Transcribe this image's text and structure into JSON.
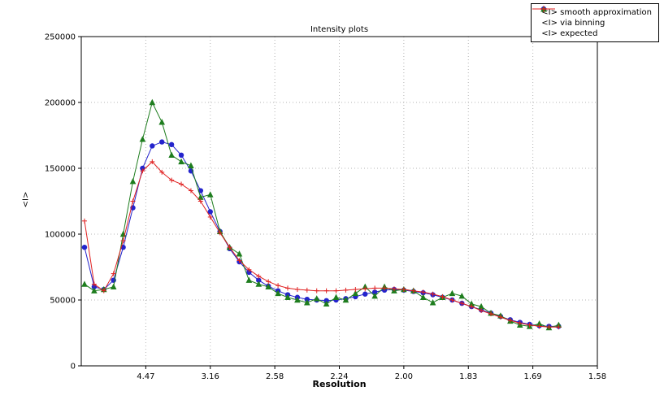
{
  "chart_data": {
    "type": "line",
    "title": "Intensity plots",
    "xlabel": "Resolution",
    "ylabel": "<I>",
    "xlim": [
      0,
      0.4
    ],
    "ylim": [
      0,
      250000
    ],
    "grid": true,
    "grid_color": "#b5b5b5",
    "legend_position": "upper right",
    "xticks": {
      "values": [
        0.05,
        0.1,
        0.15,
        0.2,
        0.25,
        0.3,
        0.35,
        0.4
      ],
      "labels": [
        "4.47",
        "3.16",
        "2.58",
        "2.24",
        "2.00",
        "1.83",
        "1.69",
        "1.58"
      ]
    },
    "yticks": {
      "values": [
        0,
        50000,
        100000,
        150000,
        200000,
        250000
      ],
      "labels": [
        "0",
        "50000",
        "100000",
        "150000",
        "200000",
        "250000"
      ]
    },
    "x": [
      0.0025,
      0.01,
      0.0175,
      0.025,
      0.0325,
      0.04,
      0.0475,
      0.055,
      0.0625,
      0.07,
      0.0775,
      0.085,
      0.0925,
      0.1,
      0.1075,
      0.115,
      0.1225,
      0.13,
      0.1375,
      0.145,
      0.1525,
      0.16,
      0.1675,
      0.175,
      0.1825,
      0.19,
      0.1975,
      0.205,
      0.2125,
      0.22,
      0.2275,
      0.235,
      0.2425,
      0.25,
      0.2575,
      0.265,
      0.2725,
      0.28,
      0.2875,
      0.295,
      0.3025,
      0.31,
      0.3175,
      0.325,
      0.3325,
      0.34,
      0.3475,
      0.355,
      0.3625,
      0.37
    ],
    "series": [
      {
        "id": "smooth-approximation",
        "name": "<I> smooth approximation",
        "color": "#2424cc",
        "marker": "circle",
        "values": [
          90000,
          60000,
          58000,
          65000,
          90000,
          120000,
          150000,
          167000,
          170000,
          168000,
          160000,
          148000,
          133000,
          117000,
          102000,
          89000,
          79000,
          71000,
          65000,
          60500,
          57000,
          54000,
          52000,
          50500,
          50000,
          49500,
          50000,
          51000,
          52500,
          54500,
          56000,
          57500,
          58000,
          57500,
          56500,
          55500,
          54000,
          52000,
          50000,
          47500,
          45000,
          42500,
          40000,
          37500,
          35000,
          33000,
          31500,
          30500,
          30000,
          30000
        ]
      },
      {
        "id": "via-binning",
        "name": "<I> via binning",
        "color": "#1e7d1e",
        "marker": "triangle",
        "values": [
          62000,
          57000,
          58000,
          60000,
          100000,
          140000,
          172000,
          200000,
          185000,
          160000,
          155000,
          152000,
          128000,
          130000,
          102000,
          90000,
          85000,
          65000,
          62000,
          60000,
          55000,
          52000,
          50000,
          48000,
          51000,
          47000,
          52000,
          50000,
          55000,
          60000,
          53000,
          60000,
          57000,
          58000,
          57000,
          52000,
          48000,
          52000,
          55000,
          53000,
          47000,
          45000,
          40000,
          38000,
          34000,
          31000,
          30000,
          32000,
          29000,
          31000
        ]
      },
      {
        "id": "expected",
        "name": "<I> expected",
        "color": "#e02020",
        "marker": "plus",
        "values": [
          110000,
          62000,
          57000,
          70000,
          95000,
          125000,
          148000,
          155000,
          147000,
          141000,
          138000,
          133000,
          125000,
          113000,
          101000,
          90000,
          80000,
          73000,
          68000,
          64000,
          61000,
          59000,
          58000,
          57500,
          57000,
          57000,
          57000,
          57500,
          58000,
          58500,
          59000,
          59000,
          58500,
          58000,
          57000,
          56000,
          54500,
          52500,
          50000,
          47500,
          45000,
          42000,
          39500,
          37000,
          34500,
          32500,
          31000,
          30000,
          29500,
          29500
        ]
      }
    ]
  }
}
